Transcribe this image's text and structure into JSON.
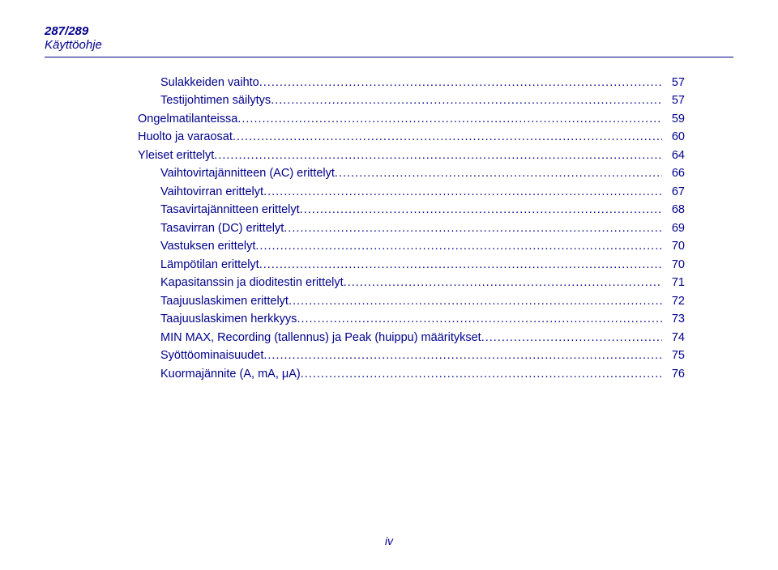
{
  "header": {
    "model": "287/289",
    "subtitle": "Käyttöohje"
  },
  "toc": {
    "items": [
      {
        "label": "Sulakkeiden vaihto",
        "page": "57",
        "indent": true
      },
      {
        "label": "Testijohtimen säilytys",
        "page": "57",
        "indent": true
      },
      {
        "label": "Ongelmatilanteissa",
        "page": "59",
        "indent": false
      },
      {
        "label": "Huolto ja varaosat",
        "page": "60",
        "indent": false
      },
      {
        "label": "Yleiset erittelyt",
        "page": "64",
        "indent": false
      },
      {
        "label": "Vaihtovirtajännitteen (AC) erittelyt",
        "page": "66",
        "indent": true
      },
      {
        "label": "Vaihtovirran erittelyt",
        "page": "67",
        "indent": true
      },
      {
        "label": "Tasavirtajännitteen erittelyt",
        "page": "68",
        "indent": true
      },
      {
        "label": "Tasavirran (DC) erittelyt",
        "page": "69",
        "indent": true
      },
      {
        "label": "Vastuksen erittelyt",
        "page": "70",
        "indent": true
      },
      {
        "label": "Lämpötilan erittelyt",
        "page": "70",
        "indent": true
      },
      {
        "label": "Kapasitanssin ja dioditestin erittelyt",
        "page": "71",
        "indent": true
      },
      {
        "label": "Taajuuslaskimen erittelyt",
        "page": "72",
        "indent": true
      },
      {
        "label": "Taajuuslaskimen herkkyys",
        "page": "73",
        "indent": true
      },
      {
        "label": "MIN MAX, Recording (tallennus) ja Peak (huippu) määritykset",
        "page": "74",
        "indent": true
      },
      {
        "label": "Syöttöominaisuudet",
        "page": "75",
        "indent": true
      },
      {
        "label": "Kuormajännite (A, mA, μA)",
        "page": "76",
        "indent": true
      }
    ]
  },
  "footer": {
    "page_num": "iv"
  },
  "colors": {
    "text": "#00008b",
    "background": "#ffffff"
  },
  "typography": {
    "base_font": "Arial",
    "body_size_pt": 11,
    "header_size_pt": 11,
    "line_height": 1.55
  }
}
